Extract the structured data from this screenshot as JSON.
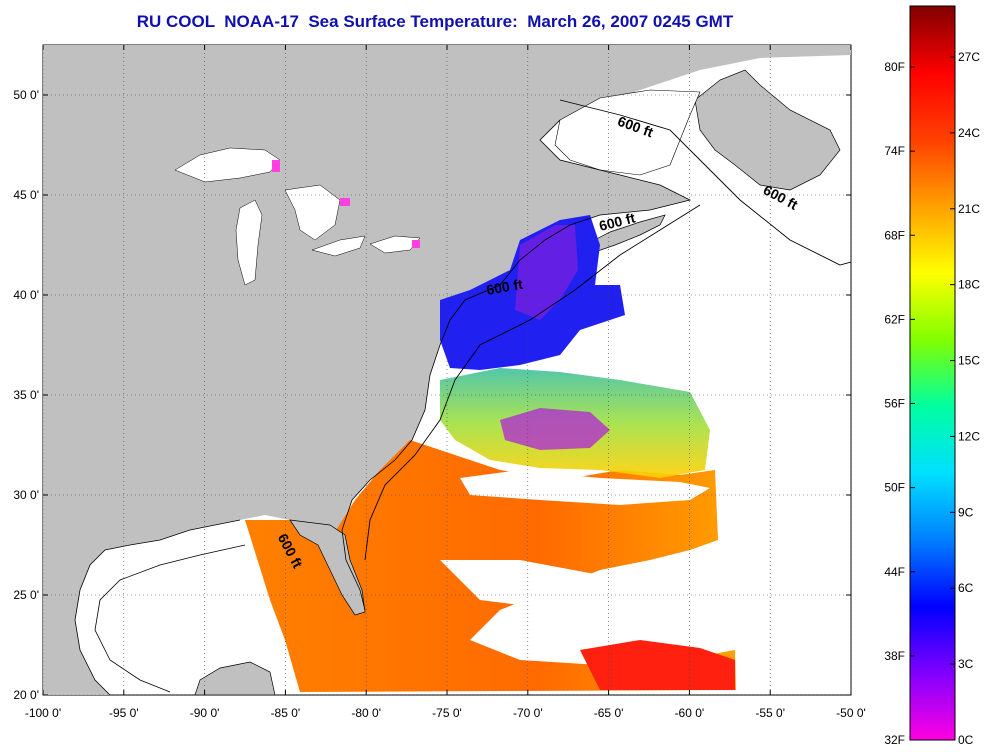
{
  "title": "RU COOL  NOAA-17  Sea Surface Temperature:  March 26, 2007 0245 GMT",
  "map": {
    "lon_range": [
      -100,
      -50
    ],
    "lat_range": [
      20,
      52.5
    ],
    "lon_ticks": [
      {
        "value": -100,
        "label": "-100 0'"
      },
      {
        "value": -95,
        "label": "-95 0'"
      },
      {
        "value": -90,
        "label": "-90 0'"
      },
      {
        "value": -85,
        "label": "-85 0'"
      },
      {
        "value": -80,
        "label": "-80 0'"
      },
      {
        "value": -75,
        "label": "-75 0'"
      },
      {
        "value": -70,
        "label": "-70 0'"
      },
      {
        "value": -65,
        "label": "-65 0'"
      },
      {
        "value": -60,
        "label": "-60 0'"
      },
      {
        "value": -55,
        "label": "-55 0'"
      },
      {
        "value": -50,
        "label": "-50 0'"
      }
    ],
    "lat_ticks": [
      {
        "value": 50,
        "label": "50 0'"
      },
      {
        "value": 45,
        "label": "45 0'"
      },
      {
        "value": 40,
        "label": "40 0'"
      },
      {
        "value": 35,
        "label": "35 0'"
      },
      {
        "value": 30,
        "label": "30 0'"
      },
      {
        "value": 25,
        "label": "25 0'"
      },
      {
        "value": 20,
        "label": "20 0'"
      }
    ],
    "grid": "dotted",
    "land_color": "#c0c0c0",
    "no_data_color": "#ffffff",
    "depth_contour_labels": [
      {
        "text": "600 ft",
        "lon": -64.5,
        "lat": 48.5
      },
      {
        "text": "600 ft",
        "lon": -55.5,
        "lat": 45.1
      },
      {
        "text": "600 ft",
        "lon": -65.5,
        "lat": 43.2
      },
      {
        "text": "600 ft",
        "lon": -72.5,
        "lat": 40.0
      },
      {
        "text": "600 ft",
        "lon": -85.5,
        "lat": 27.9
      }
    ]
  },
  "colorbar": {
    "fahrenheit_labels": [
      "80F",
      "74F",
      "68F",
      "62F",
      "56F",
      "50F",
      "44F",
      "38F",
      "32F"
    ],
    "celsius_labels": [
      "27C",
      "24C",
      "21C",
      "18C",
      "15C",
      "12C",
      "9C",
      "6C",
      "3C",
      "0C"
    ],
    "colors": [
      "#ff00e0",
      "#8000ff",
      "#0000ff",
      "#0080ff",
      "#00e0ff",
      "#00ffa0",
      "#80ff00",
      "#ffff00",
      "#ffa000",
      "#ff4000",
      "#ff0000",
      "#800000"
    ]
  }
}
